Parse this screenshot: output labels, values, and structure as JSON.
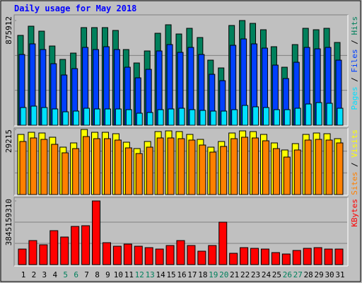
{
  "chart_data": {
    "type": "bar",
    "title": "Daily usage for May 2018",
    "categories": [
      "1",
      "2",
      "3",
      "4",
      "5",
      "6",
      "7",
      "8",
      "9",
      "10",
      "11",
      "12",
      "13",
      "14",
      "15",
      "16",
      "17",
      "18",
      "19",
      "20",
      "21",
      "22",
      "23",
      "24",
      "25",
      "26",
      "27",
      "28",
      "29",
      "30",
      "31"
    ],
    "category_colors": [
      "#000000",
      "#000000",
      "#000000",
      "#000000",
      "#00805c",
      "#00805c",
      "#000000",
      "#000000",
      "#000000",
      "#000000",
      "#000000",
      "#00805c",
      "#00805c",
      "#000000",
      "#000000",
      "#000000",
      "#000000",
      "#000000",
      "#00805c",
      "#00805c",
      "#000000",
      "#000000",
      "#000000",
      "#000000",
      "#000000",
      "#00805c",
      "#00805c",
      "#000000",
      "#000000",
      "#000000",
      "#000000"
    ],
    "legend_separator": " / ",
    "grid_divisions": 3,
    "panels": [
      {
        "ylim": [
          0,
          875912
        ],
        "yticks": [
          875912
        ],
        "series": [
          {
            "name": "Pages",
            "color": "#00e0ff",
            "values": [
              148000,
              159800,
              148000,
              136100,
              112400,
              118400,
              142000,
              136100,
              136100,
              136100,
              130200,
              100600,
              106500,
              130200,
              136100,
              142000,
              130200,
              124300,
              118400,
              118400,
              130200,
              165700,
              153900,
              148000,
              130200,
              130200,
              142000,
              177500,
              189400,
              183500,
              142000
            ]
          },
          {
            "name": "Files",
            "color": "#0040ff",
            "values": [
              591800,
              680600,
              633200,
              514900,
              420200,
              473400,
              651000,
              633200,
              656900,
              633200,
              485300,
              396500,
              467500,
              621400,
              674700,
              609600,
              651000,
              591800,
              426100,
              372800,
              668700,
              722000,
              680600,
              645100,
              503000,
              390600,
              526700,
              651000,
              639100,
              651000,
              544500
            ]
          },
          {
            "name": "Hits",
            "color": "#00805c",
            "values": [
              751600,
              828500,
              787100,
              662800,
              550400,
              603600,
              816700,
              816700,
              816700,
              793000,
              633200,
              520800,
              621400,
              769300,
              840400,
              763400,
              810800,
              733800,
              544500,
              479400,
              834400,
              875912,
              852200,
              798900,
              656900,
              485300,
              674700,
              810800,
              798900,
              810800,
              692400
            ]
          }
        ]
      },
      {
        "ylim": [
          0,
          29215
        ],
        "yticks": [
          29215
        ],
        "series": [
          {
            "name": "Sites",
            "color": "#ff8000",
            "values": [
              23820,
              25410,
              24770,
              22550,
              18740,
              20640,
              26040,
              25090,
              25090,
              24460,
              20960,
              18420,
              21280,
              25410,
              25410,
              25090,
              24460,
              22230,
              19060,
              21600,
              25090,
              25730,
              25410,
              24140,
              20640,
              16830,
              20010,
              24460,
              24770,
              24460,
              23180
            ]
          },
          {
            "name": "Visits",
            "color": "#ffff00",
            "values": [
              27000,
              27950,
              27630,
              25730,
              21280,
              23180,
              29215,
              27950,
              27950,
              27310,
              23500,
              20640,
              23820,
              28270,
              28580,
              28270,
              27000,
              24770,
              21280,
              23820,
              27630,
              28580,
              28270,
              27000,
              23180,
              20010,
              22870,
              27000,
              27630,
              27310,
              25090
            ]
          }
        ]
      },
      {
        "ylim": [
          0,
          3845159310
        ],
        "yticks": [
          3845159310
        ],
        "series": [
          {
            "name": "KBytes",
            "color": "#ff0000",
            "values": [
              939900000,
              1452600000,
              1196300000,
              2050800000,
              1666200000,
              2307100000,
              2349800000,
              3845159310,
              1324400000,
              1110800000,
              1239000000,
              1110800000,
              1025400000,
              939900000,
              1153500000,
              1452600000,
              1153500000,
              811800000,
              1153500000,
              2563400000,
              683600000,
              1025400000,
              982700000,
              939900000,
              726300000,
              640900000,
              854500000,
              982700000,
              1025400000,
              939900000,
              939900000
            ]
          }
        ]
      }
    ]
  }
}
